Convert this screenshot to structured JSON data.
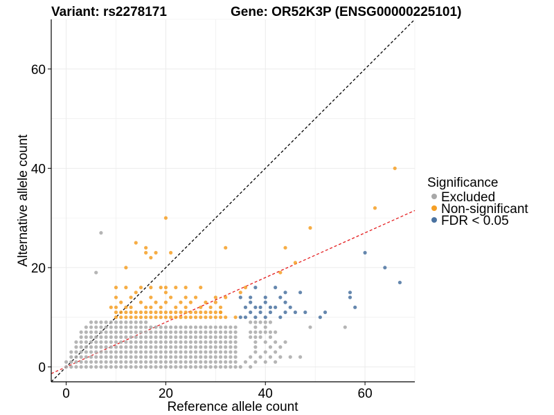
{
  "chart_data": {
    "type": "scatter",
    "title": "Variant: rs2278171",
    "subtitle": "Gene: OR52K3P (ENSG00000225101)",
    "xlabel": "Reference allele count",
    "ylabel": "Alternative allele count",
    "xlim": [
      -3,
      70
    ],
    "ylim": [
      -3,
      70
    ],
    "x_ticks": [
      0,
      20,
      40,
      60
    ],
    "y_ticks": [
      0,
      20,
      40,
      60
    ],
    "grid": true,
    "legend": {
      "title": "Significance",
      "placement": "right",
      "entries": [
        {
          "label": "Excluded",
          "color": "#a8a8a8"
        },
        {
          "label": "Non-significant",
          "color": "#f59f25"
        },
        {
          "label": "FDR < 0.05",
          "color": "#4a72a0"
        }
      ]
    },
    "reference_lines": [
      {
        "kind": "identity",
        "slope": 1,
        "intercept": 0,
        "color": "#000000",
        "style": "dashed"
      },
      {
        "kind": "fit",
        "slope": 0.45,
        "intercept": 0,
        "color": "#e41a1c",
        "style": "dashed"
      }
    ],
    "series": [
      {
        "name": "Excluded",
        "color": "#a8a8a8",
        "grid_block": {
          "x_range": [
            0,
            36
          ],
          "y_range": [
            0,
            8
          ]
        },
        "points": [
          [
            7,
            27
          ],
          [
            6,
            19
          ],
          [
            5,
            9
          ],
          [
            6,
            9
          ],
          [
            7,
            9
          ],
          [
            8,
            9
          ],
          [
            9,
            9
          ],
          [
            10,
            9
          ],
          [
            11,
            9
          ],
          [
            12,
            9
          ],
          [
            13,
            9
          ],
          [
            14,
            9
          ],
          [
            15,
            9
          ],
          [
            16,
            9
          ],
          [
            37,
            9
          ],
          [
            38,
            9
          ],
          [
            39,
            9
          ],
          [
            40,
            9
          ],
          [
            41,
            9
          ],
          [
            38,
            8
          ],
          [
            40,
            8
          ],
          [
            49,
            8
          ],
          [
            56,
            8
          ],
          [
            37,
            7
          ],
          [
            38,
            7
          ],
          [
            39,
            7
          ],
          [
            40,
            7
          ],
          [
            41,
            7
          ],
          [
            42,
            7
          ],
          [
            37,
            6
          ],
          [
            38,
            6
          ],
          [
            39,
            6
          ],
          [
            41,
            6
          ],
          [
            38,
            5
          ],
          [
            40,
            5
          ],
          [
            42,
            5
          ],
          [
            44,
            5
          ],
          [
            38,
            4
          ],
          [
            41,
            4
          ],
          [
            43,
            4
          ],
          [
            38,
            3
          ],
          [
            40,
            3
          ],
          [
            42,
            3
          ],
          [
            37,
            2
          ],
          [
            39,
            2
          ],
          [
            41,
            2
          ],
          [
            43,
            2
          ],
          [
            45,
            2
          ],
          [
            47,
            2
          ],
          [
            38,
            1
          ],
          [
            40,
            1
          ],
          [
            42,
            1
          ],
          [
            36,
            1
          ],
          [
            37,
            0
          ],
          [
            35,
            0
          ]
        ]
      },
      {
        "name": "Non-significant",
        "color": "#f59f25",
        "grid_block": {
          "x_range": [
            10,
            31
          ],
          "y_range": [
            10,
            11
          ]
        },
        "points": [
          [
            20,
            30
          ],
          [
            14,
            25
          ],
          [
            16,
            24
          ],
          [
            32,
            24
          ],
          [
            16,
            23
          ],
          [
            18,
            23
          ],
          [
            21,
            23
          ],
          [
            12,
            20
          ],
          [
            17,
            22
          ],
          [
            44,
            24
          ],
          [
            49,
            28
          ],
          [
            62,
            32
          ],
          [
            66,
            40
          ],
          [
            46,
            21
          ],
          [
            43,
            19
          ],
          [
            10,
            16
          ],
          [
            12,
            16
          ],
          [
            15,
            16
          ],
          [
            17,
            16
          ],
          [
            19,
            16
          ],
          [
            20,
            16
          ],
          [
            22,
            16
          ],
          [
            24,
            16
          ],
          [
            27,
            16
          ],
          [
            14,
            15
          ],
          [
            20,
            15
          ],
          [
            35,
            15
          ],
          [
            36,
            16
          ],
          [
            10,
            14
          ],
          [
            13,
            14
          ],
          [
            17,
            14
          ],
          [
            21,
            14
          ],
          [
            24,
            14
          ],
          [
            26,
            14
          ],
          [
            30,
            14
          ],
          [
            32,
            14
          ],
          [
            11,
            13
          ],
          [
            15,
            13
          ],
          [
            18,
            13
          ],
          [
            20,
            13
          ],
          [
            23,
            13
          ],
          [
            25,
            13
          ],
          [
            28,
            13
          ],
          [
            30,
            13
          ],
          [
            9,
            12
          ],
          [
            10,
            12
          ],
          [
            12,
            12
          ],
          [
            13,
            12
          ],
          [
            16,
            12
          ],
          [
            17,
            12
          ],
          [
            19,
            12
          ],
          [
            22,
            12
          ],
          [
            24,
            12
          ],
          [
            27,
            12
          ],
          [
            29,
            12
          ],
          [
            31,
            12
          ],
          [
            31,
            11
          ],
          [
            32,
            10
          ],
          [
            34,
            10
          ]
        ]
      },
      {
        "name": "FDR < 0.05",
        "color": "#4a72a0",
        "points": [
          [
            38,
            16
          ],
          [
            42,
            16
          ],
          [
            44,
            15
          ],
          [
            47,
            15
          ],
          [
            35,
            14
          ],
          [
            37,
            14
          ],
          [
            40,
            14
          ],
          [
            43,
            14
          ],
          [
            37,
            13
          ],
          [
            40,
            13
          ],
          [
            44,
            13
          ],
          [
            36,
            12
          ],
          [
            38,
            12
          ],
          [
            39,
            12
          ],
          [
            41,
            12
          ],
          [
            42,
            12
          ],
          [
            45,
            12
          ],
          [
            37,
            11
          ],
          [
            39,
            11
          ],
          [
            41,
            11
          ],
          [
            44,
            11
          ],
          [
            46,
            11
          ],
          [
            48,
            11
          ],
          [
            36,
            10
          ],
          [
            38,
            10
          ],
          [
            40,
            10
          ],
          [
            43,
            10
          ],
          [
            35,
            10
          ],
          [
            60,
            23
          ],
          [
            64,
            20
          ],
          [
            67,
            17
          ],
          [
            57,
            15
          ],
          [
            57,
            14
          ],
          [
            58,
            12
          ],
          [
            52,
            11
          ],
          [
            51,
            10
          ]
        ]
      }
    ]
  }
}
